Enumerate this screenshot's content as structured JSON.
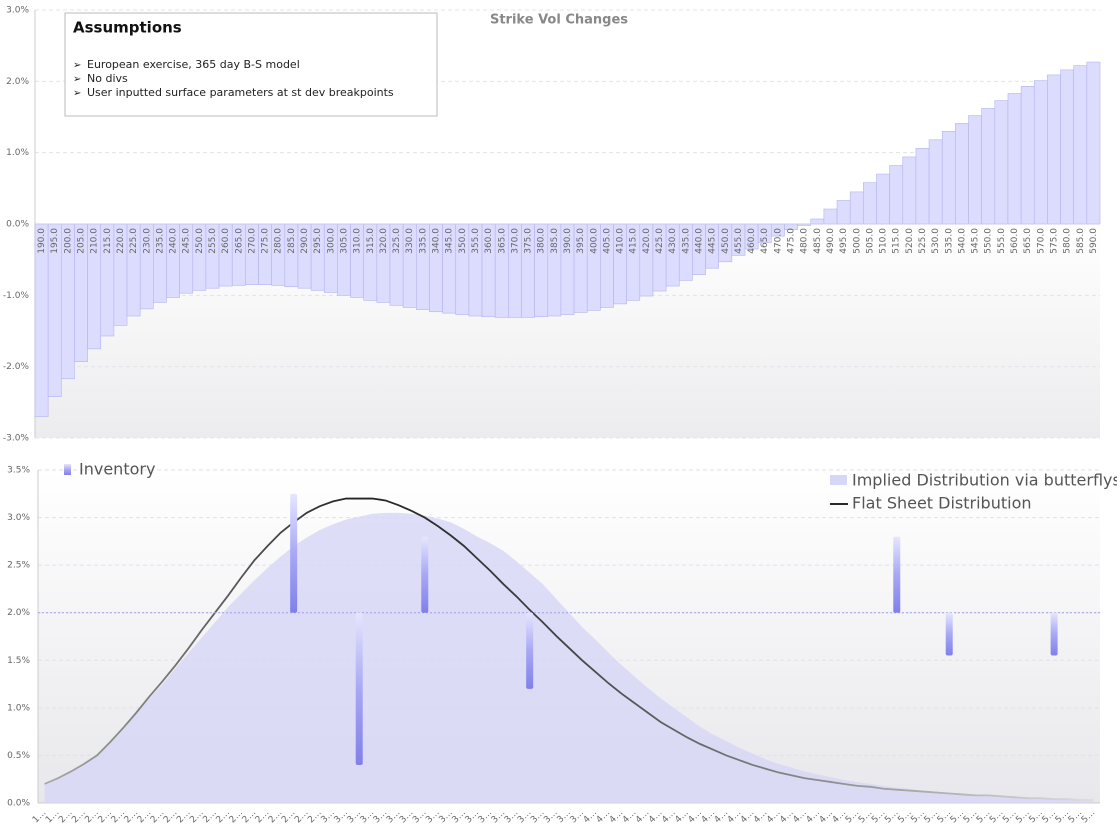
{
  "chart_data": [
    {
      "type": "bar",
      "title": "Strike Vol Changes",
      "annotation": {
        "title": "Assumptions",
        "items": [
          "European exercise, 365 day B-S model",
          "No divs",
          "User inputted surface parameters at st dev breakpoints"
        ]
      },
      "categories": [
        "190.0",
        "195.0",
        "200.0",
        "205.0",
        "210.0",
        "215.0",
        "220.0",
        "225.0",
        "230.0",
        "235.0",
        "240.0",
        "245.0",
        "250.0",
        "255.0",
        "260.0",
        "265.0",
        "270.0",
        "275.0",
        "280.0",
        "285.0",
        "290.0",
        "295.0",
        "300.0",
        "305.0",
        "310.0",
        "315.0",
        "320.0",
        "325.0",
        "330.0",
        "335.0",
        "340.0",
        "345.0",
        "350.0",
        "355.0",
        "360.0",
        "365.0",
        "370.0",
        "375.0",
        "380.0",
        "385.0",
        "390.0",
        "395.0",
        "400.0",
        "405.0",
        "410.0",
        "415.0",
        "420.0",
        "425.0",
        "430.0",
        "435.0",
        "440.0",
        "445.0",
        "450.0",
        "455.0",
        "460.0",
        "465.0",
        "470.0",
        "475.0",
        "480.0",
        "485.0",
        "490.0",
        "495.0",
        "500.0",
        "505.0",
        "510.0",
        "515.0",
        "520.0",
        "525.0",
        "530.0",
        "535.0",
        "540.0",
        "545.0",
        "550.0",
        "555.0",
        "560.0",
        "565.0",
        "570.0",
        "575.0",
        "580.0",
        "585.0",
        "590.0"
      ],
      "values": [
        -2.7,
        -2.42,
        -2.17,
        -1.93,
        -1.75,
        -1.57,
        -1.42,
        -1.29,
        -1.19,
        -1.1,
        -1.03,
        -0.97,
        -0.93,
        -0.9,
        -0.87,
        -0.86,
        -0.85,
        -0.85,
        -0.86,
        -0.88,
        -0.9,
        -0.93,
        -0.96,
        -1.0,
        -1.03,
        -1.07,
        -1.1,
        -1.14,
        -1.17,
        -1.2,
        -1.23,
        -1.25,
        -1.27,
        -1.29,
        -1.3,
        -1.31,
        -1.31,
        -1.31,
        -1.3,
        -1.29,
        -1.27,
        -1.24,
        -1.21,
        -1.17,
        -1.12,
        -1.07,
        -1.01,
        -0.94,
        -0.87,
        -0.79,
        -0.71,
        -0.62,
        -0.53,
        -0.44,
        -0.35,
        -0.26,
        -0.17,
        -0.08,
        -0.02,
        0.07,
        0.21,
        0.33,
        0.45,
        0.58,
        0.7,
        0.82,
        0.94,
        1.06,
        1.18,
        1.3,
        1.41,
        1.52,
        1.62,
        1.73,
        1.83,
        1.93,
        2.01,
        2.09,
        2.16,
        2.22,
        2.27
      ],
      "color": "#dcdcff",
      "ylim": [
        -3,
        3
      ],
      "yticks": [
        {
          "value": -3,
          "label": "-3.0%"
        },
        {
          "value": -2,
          "label": "-2.0%"
        },
        {
          "value": -1,
          "label": "-1.0%"
        },
        {
          "value": 0,
          "label": "0.0%"
        },
        {
          "value": 1,
          "label": "1.0%"
        },
        {
          "value": 2,
          "label": "2.0%"
        },
        {
          "value": 3,
          "label": "3.0%"
        }
      ],
      "grid": true
    },
    {
      "type": "line",
      "categories": [
        "1…",
        "1…",
        "2…",
        "2…",
        "2…",
        "2…",
        "2…",
        "2…",
        "2…",
        "2…",
        "2…",
        "2…",
        "2…",
        "2…",
        "2…",
        "2…",
        "2…",
        "2…",
        "2…",
        "2…",
        "2…",
        "2…",
        "3…",
        "3…",
        "3…",
        "3…",
        "3…",
        "3…",
        "3…",
        "3…",
        "3…",
        "3…",
        "3…",
        "3…",
        "3…",
        "3…",
        "3…",
        "3…",
        "3…",
        "3…",
        "3…",
        "3…",
        "4…",
        "4…",
        "4…",
        "4…",
        "4…",
        "4…",
        "4…",
        "4…",
        "4…",
        "4…",
        "4…",
        "4…",
        "4…",
        "4…",
        "4…",
        "4…",
        "4…",
        "4…",
        "4…",
        "4…",
        "5…",
        "5…",
        "5…",
        "5…",
        "5…",
        "5…",
        "5…",
        "5…",
        "5…",
        "5…",
        "5…",
        "5…",
        "5…",
        "5…",
        "5…",
        "5…",
        "5…",
        "5…",
        "5…"
      ],
      "series": [
        {
          "name": "Implied Distribution via butterflys",
          "type": "area",
          "color": "#d6d6f6",
          "values": [
            0.2,
            0.26,
            0.33,
            0.41,
            0.5,
            0.63,
            0.78,
            0.94,
            1.1,
            1.25,
            1.42,
            1.58,
            1.74,
            1.9,
            2.06,
            2.2,
            2.34,
            2.47,
            2.59,
            2.7,
            2.79,
            2.87,
            2.93,
            2.98,
            3.01,
            3.04,
            3.05,
            3.05,
            3.04,
            3.02,
            2.99,
            2.95,
            2.88,
            2.8,
            2.73,
            2.65,
            2.54,
            2.42,
            2.3,
            2.15,
            2.0,
            1.85,
            1.72,
            1.58,
            1.45,
            1.33,
            1.21,
            1.1,
            1.0,
            0.9,
            0.8,
            0.72,
            0.65,
            0.58,
            0.52,
            0.46,
            0.41,
            0.37,
            0.33,
            0.3,
            0.27,
            0.24,
            0.22,
            0.2,
            0.18,
            0.16,
            0.15,
            0.13,
            0.12,
            0.11,
            0.1,
            0.09,
            0.08,
            0.08,
            0.07,
            0.06,
            0.06,
            0.05,
            0.05,
            0.04,
            0.04
          ]
        },
        {
          "name": "Flat Sheet Distribution",
          "type": "line",
          "color": "#2a2a2a",
          "values": [
            0.2,
            0.26,
            0.33,
            0.41,
            0.5,
            0.64,
            0.79,
            0.95,
            1.12,
            1.28,
            1.45,
            1.63,
            1.82,
            2.0,
            2.18,
            2.37,
            2.55,
            2.7,
            2.84,
            2.95,
            3.05,
            3.12,
            3.17,
            3.2,
            3.2,
            3.2,
            3.18,
            3.13,
            3.07,
            3.0,
            2.91,
            2.81,
            2.7,
            2.57,
            2.44,
            2.3,
            2.17,
            2.03,
            1.9,
            1.76,
            1.63,
            1.5,
            1.38,
            1.26,
            1.15,
            1.05,
            0.95,
            0.85,
            0.77,
            0.69,
            0.62,
            0.56,
            0.5,
            0.45,
            0.4,
            0.36,
            0.32,
            0.29,
            0.26,
            0.24,
            0.22,
            0.2,
            0.18,
            0.17,
            0.15,
            0.14,
            0.13,
            0.12,
            0.11,
            0.1,
            0.09,
            0.08,
            0.08,
            0.07,
            0.06,
            0.05,
            0.05,
            0.04,
            0.04,
            0.03,
            0.03
          ]
        },
        {
          "name": "Inventory",
          "type": "floating_bar",
          "color": "#8a8af0",
          "baseline": 2,
          "values": [
            null,
            null,
            null,
            null,
            null,
            null,
            null,
            null,
            null,
            null,
            null,
            null,
            null,
            null,
            null,
            null,
            null,
            null,
            null,
            3.25,
            null,
            null,
            null,
            null,
            0.4,
            null,
            null,
            null,
            null,
            2.8,
            null,
            null,
            null,
            null,
            null,
            null,
            null,
            1.2,
            null,
            null,
            null,
            null,
            null,
            null,
            null,
            null,
            null,
            null,
            null,
            null,
            null,
            null,
            null,
            null,
            null,
            null,
            null,
            null,
            null,
            null,
            null,
            null,
            null,
            null,
            null,
            2.8,
            null,
            null,
            null,
            1.55,
            null,
            null,
            null,
            null,
            null,
            null,
            null,
            1.55,
            null,
            null,
            null
          ]
        }
      ],
      "ylim": [
        0,
        3.5
      ],
      "yticks": [
        {
          "value": 0,
          "label": "0.0%"
        },
        {
          "value": 0.5,
          "label": "0.5%"
        },
        {
          "value": 1,
          "label": "1.0%"
        },
        {
          "value": 1.5,
          "label": "1.5%"
        },
        {
          "value": 2,
          "label": "2.0%"
        },
        {
          "value": 2.5,
          "label": "2.5%"
        },
        {
          "value": 3,
          "label": "3.0%"
        },
        {
          "value": 3.5,
          "label": "3.5%"
        }
      ],
      "grid": true
    }
  ]
}
